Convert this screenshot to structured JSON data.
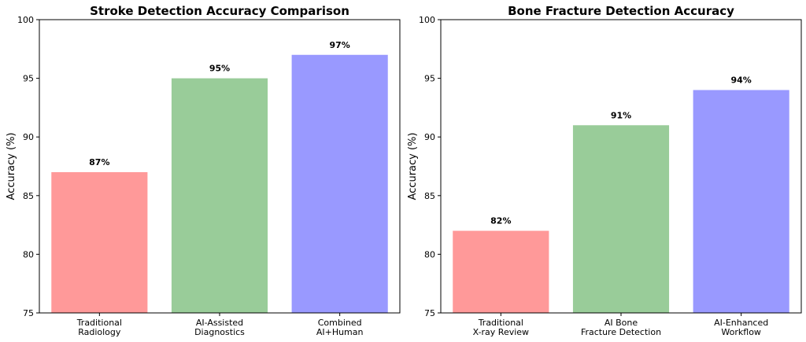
{
  "chart_data": [
    {
      "type": "bar",
      "title": "Stroke Detection Accuracy Comparison",
      "ylabel": "Accuracy (%)",
      "ylim": [
        75,
        100
      ],
      "yticks": [
        75,
        80,
        85,
        90,
        95,
        100
      ],
      "categories": [
        [
          "Traditional",
          "Radiology"
        ],
        [
          "AI-Assisted",
          "Diagnostics"
        ],
        [
          "Combined",
          "AI+Human"
        ]
      ],
      "values": [
        87,
        95,
        97
      ],
      "value_labels": [
        "87%",
        "95%",
        "97%"
      ],
      "colors": [
        "#ff9999",
        "#99cc99",
        "#9999ff"
      ],
      "grid": false
    },
    {
      "type": "bar",
      "title": "Bone Fracture Detection Accuracy",
      "ylabel": "Accuracy (%)",
      "ylim": [
        75,
        100
      ],
      "yticks": [
        75,
        80,
        85,
        90,
        95,
        100
      ],
      "categories": [
        [
          "Traditional",
          "X-ray Review"
        ],
        [
          "AI Bone",
          "Fracture Detection"
        ],
        [
          "AI-Enhanced",
          "Workflow"
        ]
      ],
      "values": [
        82,
        91,
        94
      ],
      "value_labels": [
        "82%",
        "91%",
        "94%"
      ],
      "colors": [
        "#ff9999",
        "#99cc99",
        "#9999ff"
      ],
      "grid": false
    }
  ]
}
